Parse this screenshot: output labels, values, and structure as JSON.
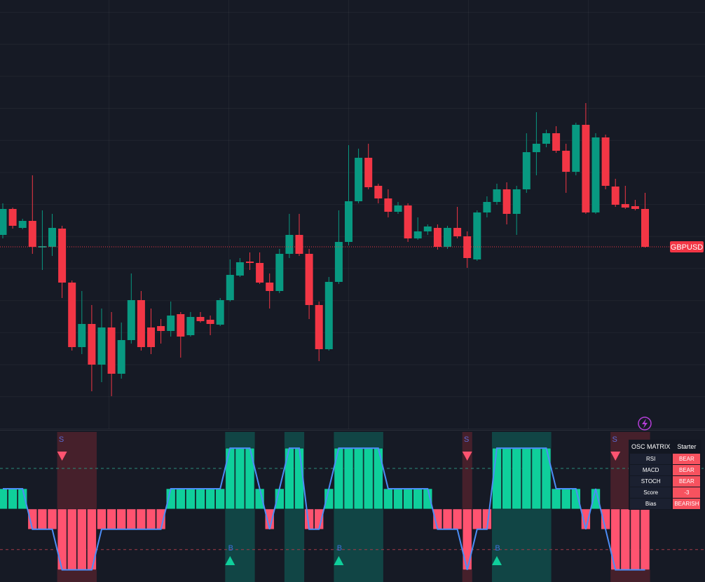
{
  "chart_data": [
    {
      "type": "candlestick",
      "name": "GBPUSD",
      "up_color": "#089981",
      "down_color": "#f23645",
      "ylim": [
        0,
        612
      ],
      "open": [
        277,
        314,
        287,
        297,
        259,
        260,
        286,
        209,
        117,
        150,
        92,
        145,
        79,
        127,
        184,
        145,
        147,
        140,
        164,
        134,
        160,
        156,
        149,
        184,
        219,
        239,
        237,
        209,
        197,
        250,
        277,
        250,
        177,
        114,
        210,
        267,
        325,
        387,
        347,
        329,
        310,
        319,
        272,
        282,
        287,
        260,
        287,
        275,
        242,
        309,
        324,
        342,
        307,
        342,
        395,
        407,
        422,
        397,
        367,
        434,
        309,
        416,
        346,
        321,
        318,
        314
      ],
      "high": [
        322,
        316,
        300,
        362,
        312,
        307,
        290,
        212,
        197,
        177,
        172,
        167,
        152,
        222,
        197,
        172,
        157,
        182,
        167,
        167,
        167,
        162,
        187,
        242,
        244,
        252,
        252,
        222,
        257,
        307,
        307,
        257,
        182,
        217,
        312,
        405,
        400,
        407,
        350,
        342,
        324,
        322,
        302,
        292,
        292,
        290,
        317,
        282,
        312,
        332,
        350,
        352,
        347,
        422,
        452,
        427,
        432,
        407,
        437,
        465,
        422,
        420,
        357,
        347,
        327,
        337
      ],
      "low": [
        272,
        286,
        285,
        250,
        227,
        247,
        187,
        112,
        107,
        54,
        67,
        47,
        72,
        122,
        112,
        107,
        122,
        132,
        102,
        132,
        152,
        134,
        147,
        182,
        217,
        227,
        207,
        172,
        194,
        244,
        247,
        157,
        97,
        112,
        207,
        262,
        322,
        342,
        322,
        302,
        307,
        267,
        270,
        277,
        256,
        257,
        272,
        230,
        240,
        302,
        320,
        292,
        277,
        337,
        362,
        402,
        394,
        337,
        362,
        307,
        307,
        342,
        317,
        314,
        312,
        259
      ],
      "close": [
        314,
        290,
        297,
        260,
        261,
        287,
        209,
        117,
        150,
        92,
        145,
        79,
        127,
        184,
        117,
        117,
        140,
        162,
        132,
        160,
        154,
        150,
        184,
        220,
        238,
        237,
        209,
        197,
        250,
        277,
        250,
        177,
        114,
        210,
        267,
        325,
        387,
        345,
        329,
        310,
        319,
        272,
        282,
        289,
        260,
        287,
        275,
        244,
        309,
        324,
        342,
        307,
        342,
        395,
        407,
        422,
        397,
        367,
        434,
        309,
        416,
        347,
        320,
        316,
        314,
        260
      ]
    },
    {
      "type": "oscillator",
      "up_color": "#0fcf9b",
      "down_color": "#ff5370",
      "line_color": "#4c8df6",
      "ylim": [
        -3.6,
        3.8
      ],
      "levels": [
        2,
        -2
      ],
      "values": [
        1,
        1,
        1,
        -1,
        -1,
        -1,
        -3,
        -3,
        -3,
        -3,
        -1,
        -1,
        -1,
        -1,
        -1,
        -1,
        -1,
        1,
        1,
        1,
        1,
        1,
        1,
        3,
        3,
        3,
        1,
        -1,
        1,
        3,
        3,
        -1,
        -1,
        1,
        3,
        3,
        3,
        3,
        3,
        1,
        1,
        1,
        1,
        1,
        -1,
        -1,
        -1,
        -3,
        -1,
        -1,
        3,
        3,
        3,
        3,
        3,
        3,
        1,
        1,
        1,
        -1,
        1,
        -1,
        -3,
        -3,
        -3,
        -3
      ],
      "sell_label": "S",
      "buy_label": "B",
      "sell_signals": [
        6,
        47,
        62
      ],
      "buy_signals": [
        23,
        34,
        50
      ]
    }
  ],
  "table": {
    "header": [
      "OSC MATRIX",
      "Starter"
    ],
    "rows": [
      [
        "RSI",
        "BEAR"
      ],
      [
        "MACD",
        "BEAR"
      ],
      [
        "STOCH",
        "BEAR"
      ],
      [
        "Score",
        -3
      ],
      [
        "Bias",
        "BEARISH"
      ]
    ]
  }
}
